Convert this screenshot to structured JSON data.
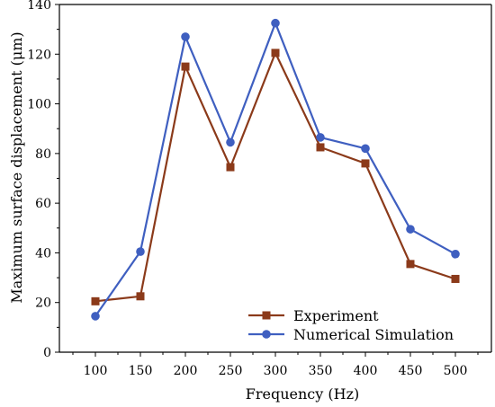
{
  "chart_data": {
    "type": "line",
    "title": "",
    "xlabel": "Frequency (Hz)",
    "ylabel": "Maximum surface displacement (μm)",
    "x": [
      100,
      150,
      200,
      250,
      300,
      350,
      400,
      450,
      500
    ],
    "xlim": [
      60,
      540
    ],
    "ylim": [
      0,
      140
    ],
    "xticks": [
      100,
      150,
      200,
      250,
      300,
      350,
      400,
      450,
      500
    ],
    "yticks": [
      0,
      20,
      40,
      60,
      80,
      100,
      120,
      140
    ],
    "grid": false,
    "legend_position": "bottom-right",
    "series": [
      {
        "name": "Experiment",
        "color": "#8B3A1A",
        "marker": "square",
        "values": [
          20.5,
          22.5,
          115,
          74.5,
          120.5,
          82.5,
          76,
          35.5,
          29.5
        ]
      },
      {
        "name": "Numerical Simulation",
        "color": "#3F5FC0",
        "marker": "circle",
        "values": [
          14.5,
          40.5,
          127,
          84.5,
          132.5,
          86.5,
          82,
          49.5,
          39.5
        ]
      }
    ]
  }
}
